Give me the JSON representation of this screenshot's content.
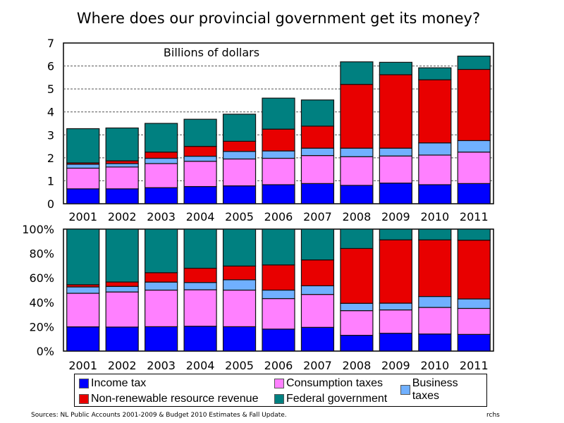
{
  "title": "Where does our provincial government get its money?",
  "chart_data": [
    {
      "type": "bar",
      "stacked": true,
      "annotation": "Billions of dollars",
      "categories": [
        "2001",
        "2002",
        "2003",
        "2004",
        "2005",
        "2006",
        "2007",
        "2008",
        "2009",
        "2010",
        "2011"
      ],
      "ylim": [
        0,
        7
      ],
      "yticks": [
        "0",
        "1",
        "2",
        "3",
        "4",
        "5",
        "6",
        "7"
      ],
      "grid": true,
      "series": [
        {
          "name": "Income tax",
          "color": "#0000ff",
          "values": [
            0.65,
            0.65,
            0.7,
            0.75,
            0.78,
            0.83,
            0.88,
            0.8,
            0.9,
            0.83,
            0.88
          ]
        },
        {
          "name": "Consumption taxes",
          "color": "#ff80ff",
          "values": [
            0.9,
            0.95,
            1.05,
            1.1,
            1.17,
            1.15,
            1.22,
            1.25,
            1.18,
            1.29,
            1.37
          ]
        },
        {
          "name": "Business taxes",
          "color": "#70b0ff",
          "values": [
            0.17,
            0.15,
            0.23,
            0.22,
            0.33,
            0.32,
            0.32,
            0.37,
            0.34,
            0.53,
            0.5
          ]
        },
        {
          "name": "Non-renewable resource revenue",
          "color": "#e80000",
          "values": [
            0.06,
            0.12,
            0.27,
            0.43,
            0.44,
            0.95,
            0.96,
            2.78,
            3.2,
            2.75,
            3.1
          ]
        },
        {
          "name": "Federal government",
          "color": "#008080",
          "values": [
            1.49,
            1.43,
            1.25,
            1.18,
            1.18,
            1.35,
            1.14,
            0.98,
            0.54,
            0.52,
            0.58
          ]
        }
      ]
    },
    {
      "type": "bar",
      "stacked": true,
      "normalized": true,
      "categories": [
        "2001",
        "2002",
        "2003",
        "2004",
        "2005",
        "2006",
        "2007",
        "2008",
        "2009",
        "2010",
        "2011"
      ],
      "ylim": [
        0,
        100
      ],
      "yticks": [
        "0%",
        "20%",
        "40%",
        "60%",
        "80%",
        "100%"
      ],
      "grid": false,
      "series_source": "same as chart 1, as percent of total"
    }
  ],
  "legend": [
    "Income tax",
    "Consumption taxes",
    "Business taxes",
    "Non-renewable resource revenue",
    "Federal government"
  ],
  "source": "Sources: NL Public Accounts 2001-2009 & Budget 2010 Estimates & Fall Update.",
  "signature": "rchs"
}
